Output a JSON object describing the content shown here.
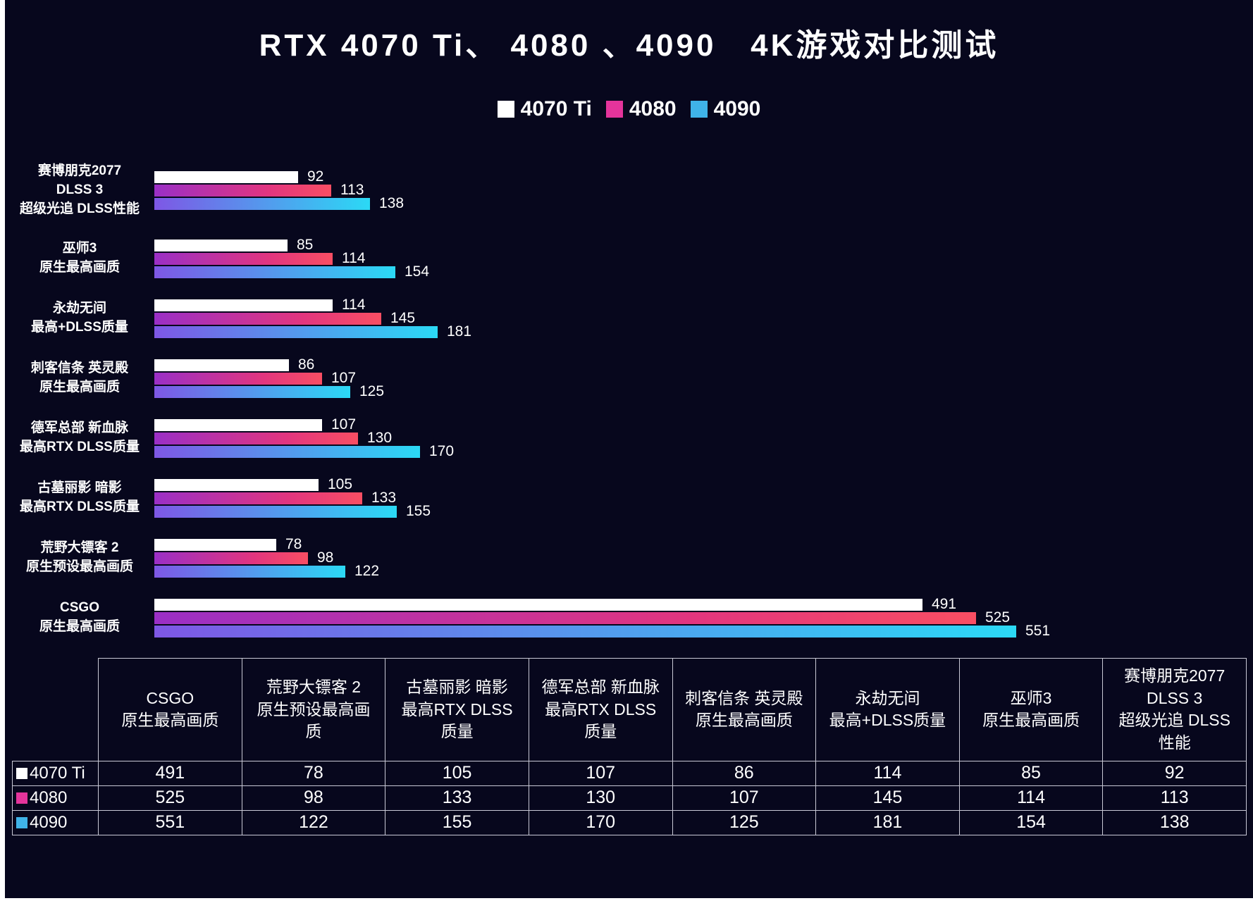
{
  "title": "RTX 4070 Ti、 4080 、4090   4K游戏对比测试",
  "legend": {
    "items": [
      {
        "key": "4070ti",
        "label": "4070 Ti",
        "swatch": "#ffffff"
      },
      {
        "key": "4080",
        "label": "4080",
        "swatch": "#e4349b"
      },
      {
        "key": "4090",
        "label": "4090",
        "swatch": "#3fb3e8"
      }
    ]
  },
  "chart_data": {
    "type": "bar",
    "orientation": "horizontal",
    "title": "RTX 4070 Ti、 4080 、4090   4K游戏对比测试",
    "legend_position": "top",
    "grid": false,
    "xlim": [
      0,
      560
    ],
    "categories": [
      {
        "lines": [
          "赛博朋克2077",
          "DLSS 3",
          "超级光追 DLSS性能"
        ]
      },
      {
        "lines": [
          "巫师3",
          "原生最高画质"
        ]
      },
      {
        "lines": [
          "永劫无间",
          "最高+DLSS质量"
        ]
      },
      {
        "lines": [
          "刺客信条 英灵殿",
          "原生最高画质"
        ]
      },
      {
        "lines": [
          "德军总部 新血脉",
          "最高RTX DLSS质量"
        ]
      },
      {
        "lines": [
          "古墓丽影 暗影",
          "最高RTX DLSS质量"
        ]
      },
      {
        "lines": [
          "荒野大镖客 2",
          "原生预设最高画质"
        ]
      },
      {
        "lines": [
          "CSGO",
          "原生最高画质"
        ]
      }
    ],
    "series": [
      {
        "name": "4070 Ti",
        "key": "4070ti",
        "color": "#ffffff",
        "values": [
          92,
          85,
          114,
          86,
          107,
          105,
          78,
          491
        ]
      },
      {
        "name": "4080",
        "key": "4080",
        "color": "#e4349b",
        "gradient": [
          "#9a2fc6",
          "#f94e63"
        ],
        "values": [
          113,
          114,
          145,
          107,
          130,
          133,
          98,
          525
        ]
      },
      {
        "name": "4090",
        "key": "4090",
        "color": "#3fb3e8",
        "gradient": [
          "#7e57e5",
          "#2bd9f5"
        ],
        "values": [
          138,
          154,
          181,
          125,
          170,
          155,
          122,
          551
        ]
      }
    ]
  },
  "table": {
    "columns": [
      {
        "lines": [
          "CSGO",
          "原生最高画质"
        ]
      },
      {
        "lines": [
          "荒野大镖客 2",
          "原生预设最高画",
          "质"
        ]
      },
      {
        "lines": [
          "古墓丽影 暗影",
          "最高RTX DLSS",
          "质量"
        ]
      },
      {
        "lines": [
          "德军总部 新血脉",
          "最高RTX DLSS",
          "质量"
        ]
      },
      {
        "lines": [
          "刺客信条 英灵殿",
          "原生最高画质"
        ]
      },
      {
        "lines": [
          "永劫无间",
          "最高+DLSS质量"
        ]
      },
      {
        "lines": [
          "巫师3",
          "原生最高画质"
        ]
      },
      {
        "lines": [
          "赛博朋克2077",
          "DLSS 3",
          "超级光追 DLSS",
          "性能"
        ]
      }
    ],
    "rows": [
      {
        "label": "4070 Ti",
        "swatch": "#ffffff",
        "values": [
          "491",
          "78",
          "105",
          "107",
          "86",
          "114",
          "85",
          "92"
        ]
      },
      {
        "label": "4080",
        "swatch": "#e4349b",
        "values": [
          "525",
          "98",
          "133",
          "130",
          "107",
          "145",
          "114",
          "113"
        ]
      },
      {
        "label": "4090",
        "swatch": "#3fb3e8",
        "values": [
          "551",
          "122",
          "155",
          "170",
          "125",
          "181",
          "154",
          "138"
        ]
      }
    ]
  }
}
